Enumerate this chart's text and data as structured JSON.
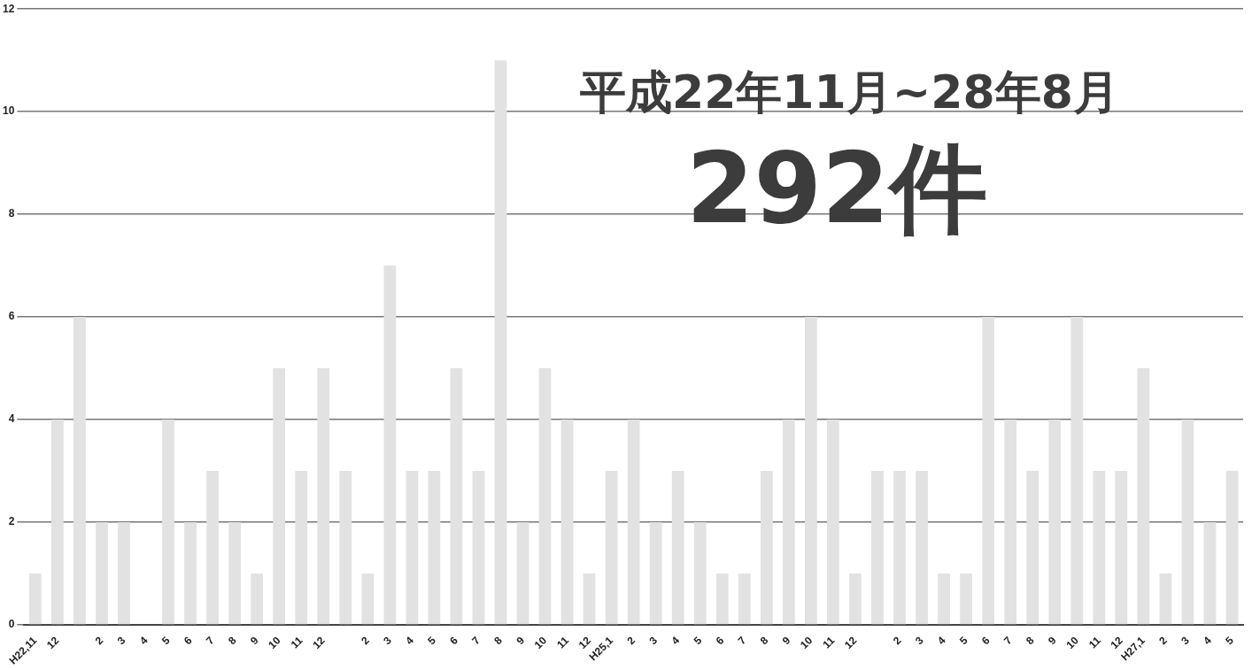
{
  "chart_data": {
    "type": "bar",
    "title": "平成22年11月~28年8月",
    "annotations": [
      "292件"
    ],
    "categories": [
      "H22,11",
      "12",
      null,
      "2",
      "3",
      "4",
      "5",
      "6",
      "7",
      "8",
      "9",
      "10",
      "11",
      "12",
      null,
      "2",
      "3",
      "4",
      "5",
      "6",
      "7",
      "8",
      "9",
      "10",
      "11",
      "12",
      "H25,1",
      "2",
      "3",
      "4",
      "5",
      "6",
      "7",
      "8",
      "9",
      "10",
      "11",
      "12",
      null,
      "2",
      "3",
      "4",
      "5",
      "6",
      "7",
      "8",
      "9",
      "10",
      "11",
      "12",
      "H27,1",
      "2",
      "3",
      "4",
      "5"
    ],
    "values": [
      1,
      4,
      6,
      2,
      2,
      0,
      4,
      2,
      3,
      2,
      1,
      5,
      3,
      5,
      3,
      1,
      7,
      3,
      3,
      5,
      3,
      11,
      2,
      5,
      4,
      1,
      3,
      4,
      2,
      3,
      2,
      1,
      1,
      3,
      4,
      6,
      4,
      1,
      3,
      3,
      3,
      1,
      1,
      6,
      4,
      3,
      4,
      6,
      3,
      3,
      5,
      1,
      4,
      2,
      3
    ],
    "color": "#e2e2e2",
    "ylim": [
      0,
      12
    ],
    "yticks": [
      0,
      2,
      4,
      6,
      8,
      10,
      12
    ],
    "grid": "y"
  }
}
